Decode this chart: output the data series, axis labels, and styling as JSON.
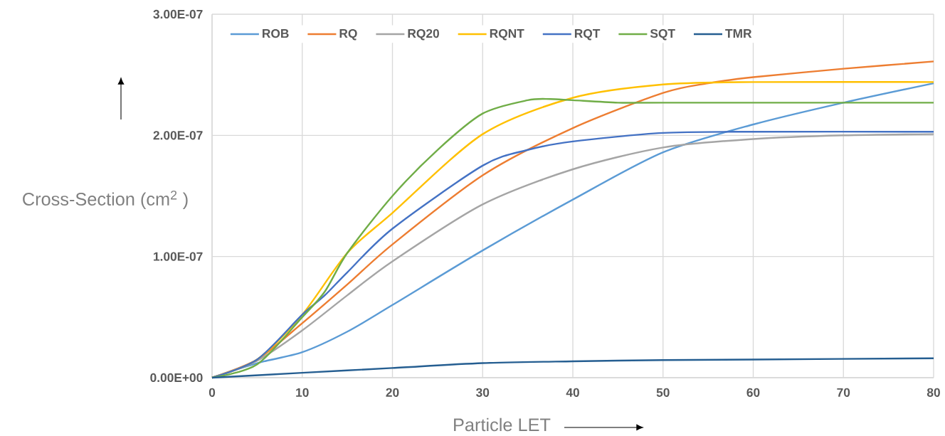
{
  "chart_data": {
    "type": "line",
    "xlabel": "Particle LET",
    "ylabel": "Cross-Section (cm$^{2}$ )",
    "xlim": [
      0,
      80
    ],
    "ylim": [
      0,
      3e-07
    ],
    "xticks": [
      0,
      10,
      20,
      30,
      40,
      50,
      60,
      70,
      80
    ],
    "yticks": [
      {
        "value": 0,
        "label": "0.00E+00"
      },
      {
        "value": 1e-07,
        "label": "1.00E-07"
      },
      {
        "value": 2e-07,
        "label": "2.00E-07"
      },
      {
        "value": 3e-07,
        "label": "3.00E-07"
      }
    ],
    "grid": true,
    "legend": "top",
    "marker": "none",
    "line_style": "solid",
    "series": [
      {
        "name": "ROB",
        "color": "#5b9bd5",
        "x": [
          0,
          5,
          10,
          15,
          20,
          30,
          40,
          50,
          60,
          70,
          80
        ],
        "values": [
          0,
          1.2e-08,
          2.1e-08,
          3.8e-08,
          6e-08,
          1.05e-07,
          1.47e-07,
          1.86e-07,
          2.09e-07,
          2.27e-07,
          2.43e-07
        ]
      },
      {
        "name": "RQ",
        "color": "#ed7d31",
        "x": [
          0,
          5,
          10,
          15,
          20,
          30,
          40,
          50,
          55,
          60,
          70,
          80
        ],
        "values": [
          0,
          1.5e-08,
          4.5e-08,
          7.7e-08,
          1.1e-07,
          1.67e-07,
          2.06e-07,
          2.35e-07,
          2.43e-07,
          2.48e-07,
          2.55e-07,
          2.61e-07
        ]
      },
      {
        "name": "RQ20",
        "color": "#a5a5a5",
        "x": [
          0,
          5,
          10,
          15,
          20,
          30,
          40,
          50,
          60,
          70,
          80
        ],
        "values": [
          0,
          1.4e-08,
          3.9e-08,
          6.8e-08,
          9.6e-08,
          1.43e-07,
          1.72e-07,
          1.9e-07,
          1.97e-07,
          2e-07,
          2.01e-07
        ]
      },
      {
        "name": "RQNT",
        "color": "#ffc000",
        "x": [
          0,
          5,
          10,
          15,
          20,
          30,
          40,
          50,
          60,
          80
        ],
        "values": [
          0,
          1.5e-08,
          5.2e-08,
          1.03e-07,
          1.36e-07,
          2.01e-07,
          2.31e-07,
          2.42e-07,
          2.44e-07,
          2.44e-07
        ]
      },
      {
        "name": "RQT",
        "color": "#4472c4",
        "x": [
          0,
          5,
          10,
          12.5,
          15,
          20,
          30,
          35,
          40,
          50,
          60,
          80
        ],
        "values": [
          0,
          1.5e-08,
          5.2e-08,
          6.8e-08,
          8.7e-08,
          1.23e-07,
          1.75e-07,
          1.88e-07,
          1.95e-07,
          2.02e-07,
          2.03e-07,
          2.03e-07
        ]
      },
      {
        "name": "SQT",
        "color": "#70ad47",
        "x": [
          0,
          5,
          10,
          12.5,
          15,
          20,
          25,
          30,
          35,
          37.5,
          40,
          45,
          50,
          80
        ],
        "values": [
          0,
          1.1e-08,
          5e-08,
          7.1e-08,
          1.03e-07,
          1.5e-07,
          1.88e-07,
          2.18e-07,
          2.29e-07,
          2.3e-07,
          2.29e-07,
          2.27e-07,
          2.27e-07,
          2.27e-07
        ]
      },
      {
        "name": "TMR",
        "color": "#255e91",
        "x": [
          0,
          10,
          20,
          30,
          40,
          50,
          60,
          80
        ],
        "values": [
          0,
          4e-09,
          8e-09,
          1.2e-08,
          1.35e-08,
          1.45e-08,
          1.5e-08,
          1.6e-08
        ]
      }
    ]
  }
}
